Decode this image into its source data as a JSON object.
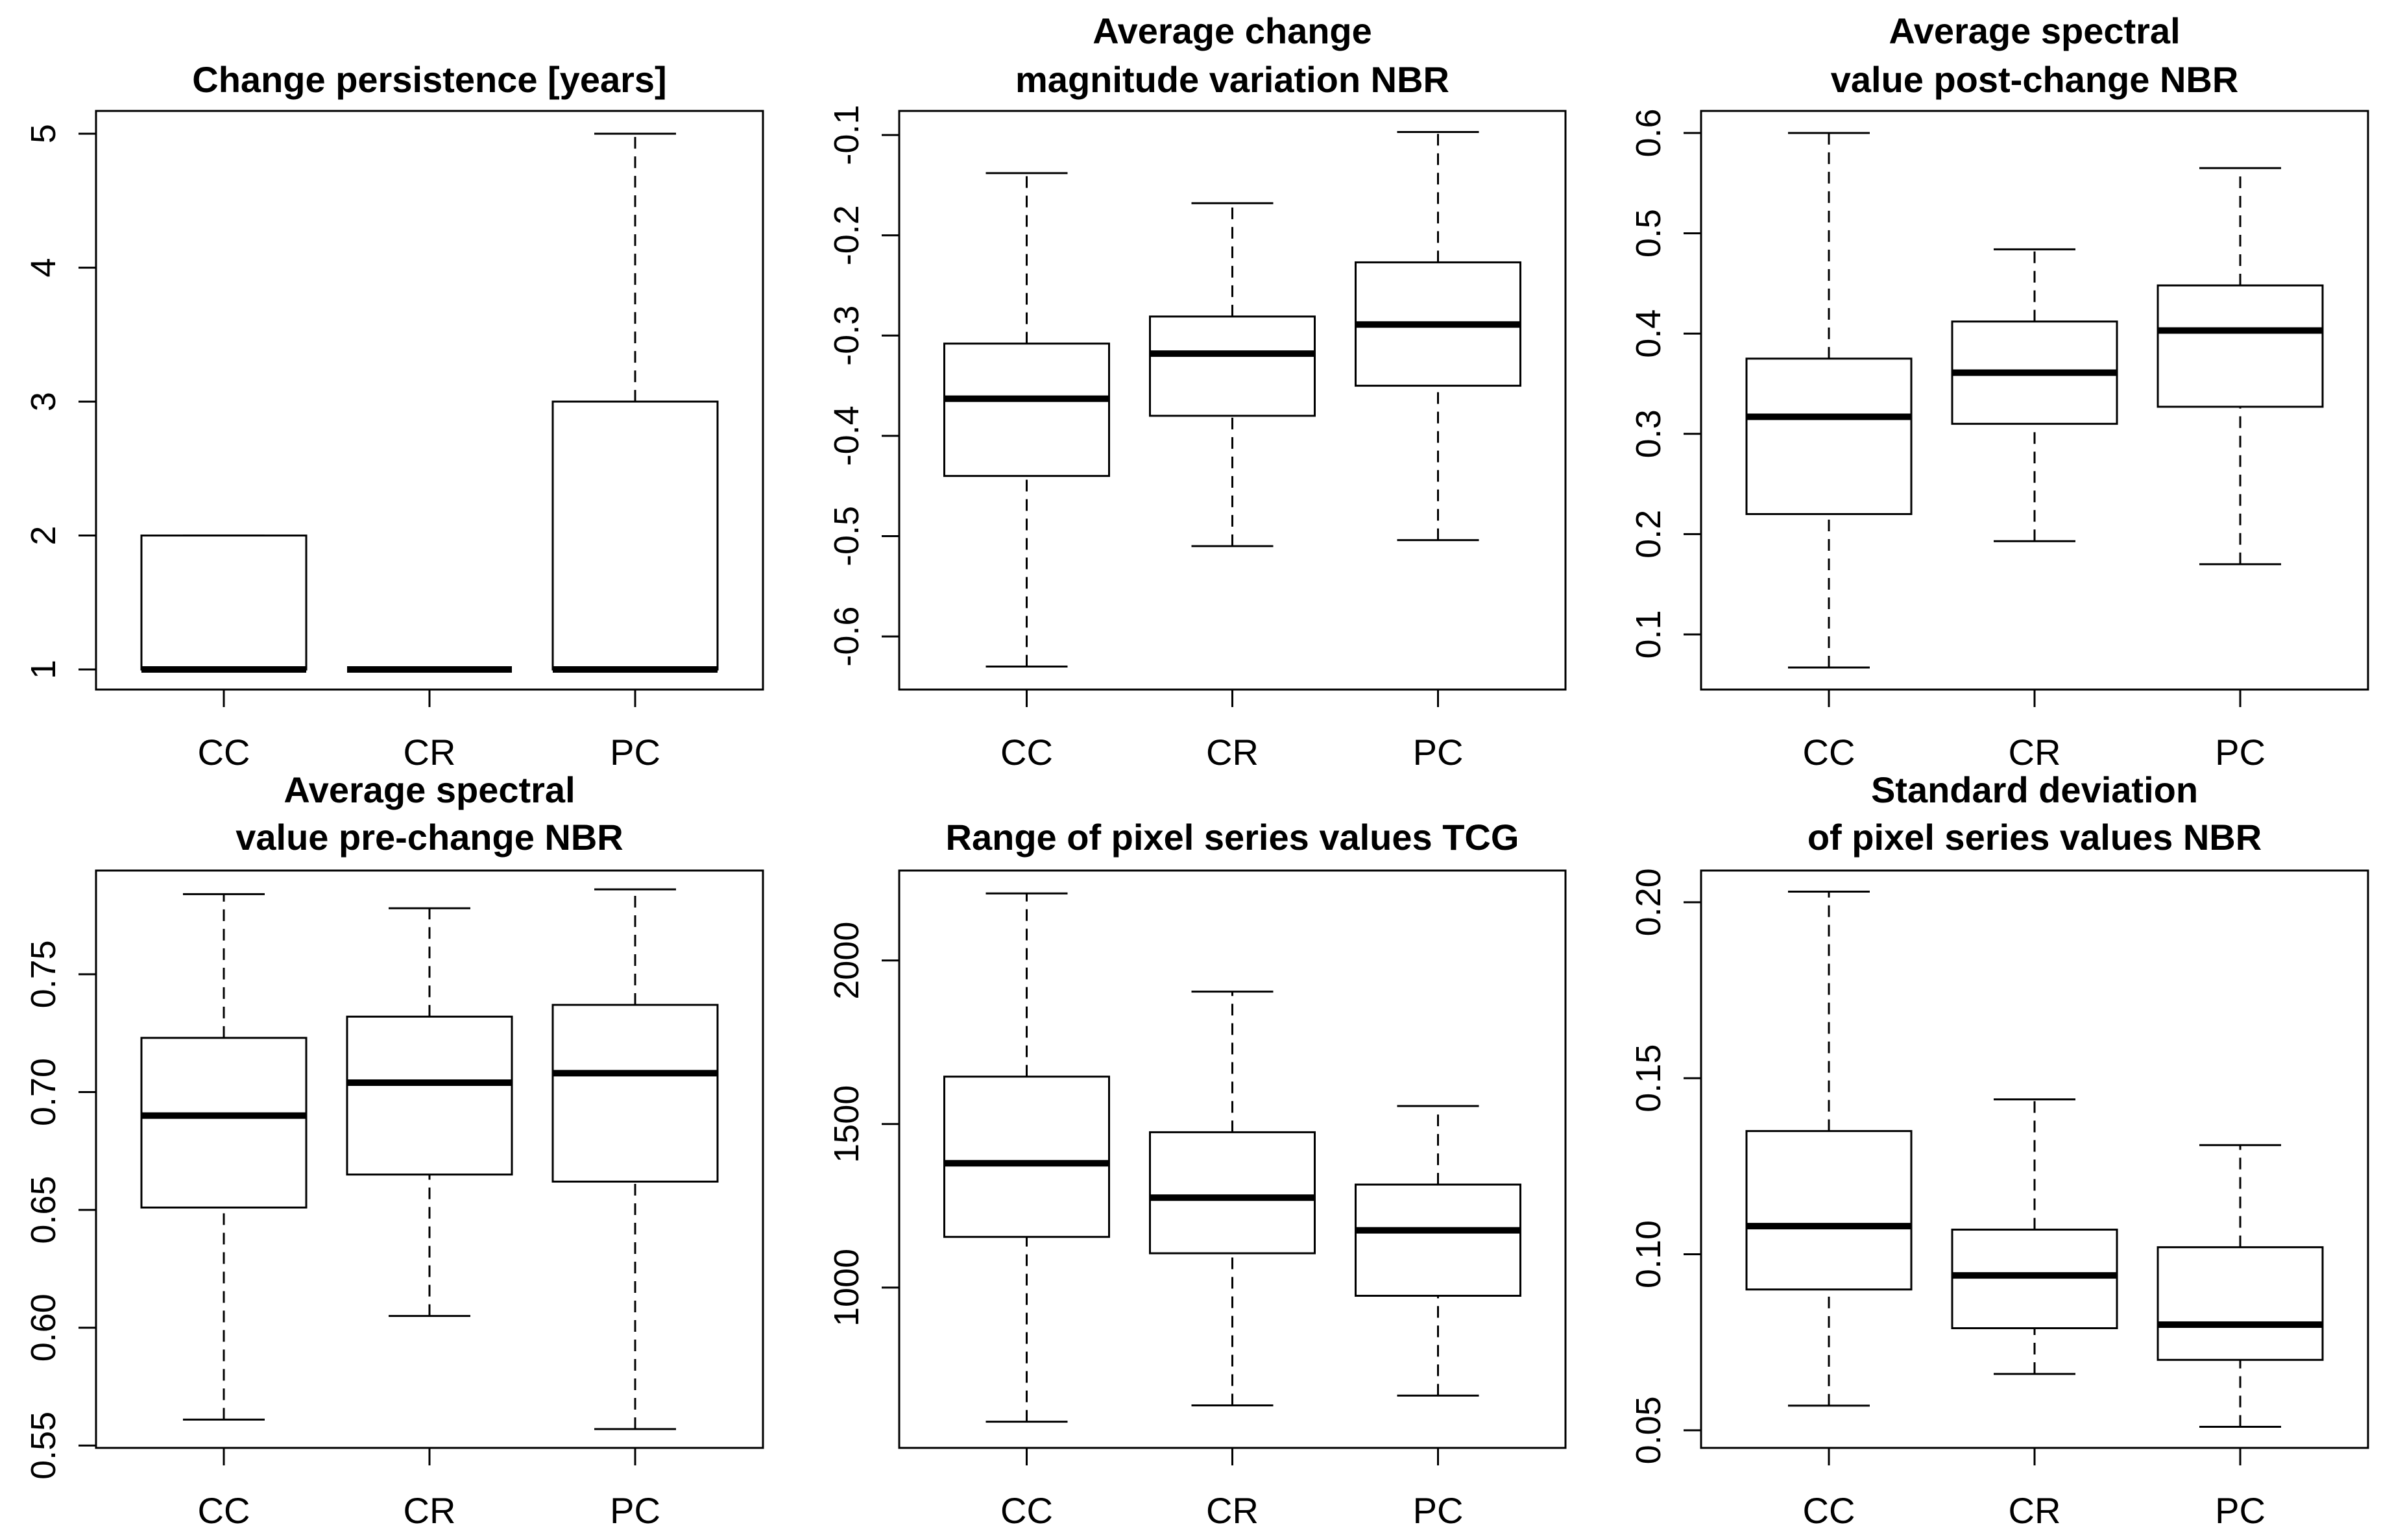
{
  "chart_data": [
    {
      "type": "boxplot",
      "title": [
        "Change persistence [years]"
      ],
      "categories": [
        "CC",
        "CR",
        "PC"
      ],
      "ylim": [
        0.85,
        5.17
      ],
      "yticks": [
        1,
        2,
        3,
        4,
        5
      ],
      "ytick_labels": [
        "1",
        "2",
        "3",
        "4",
        "5"
      ],
      "boxes": [
        {
          "min": 1,
          "q1": 1,
          "median": 1,
          "q3": 2,
          "max": 2
        },
        {
          "min": 1,
          "q1": 1,
          "median": 1,
          "q3": 1,
          "max": 1
        },
        {
          "min": 1,
          "q1": 1,
          "median": 1,
          "q3": 3,
          "max": 5
        }
      ]
    },
    {
      "type": "boxplot",
      "title": [
        "Average change",
        "magnitude variation NBR"
      ],
      "categories": [
        "CC",
        "CR",
        "PC"
      ],
      "ylim": [
        -0.653,
        -0.076
      ],
      "yticks": [
        -0.6,
        -0.5,
        -0.4,
        -0.3,
        -0.2,
        -0.1
      ],
      "ytick_labels": [
        "-0.6",
        "-0.5",
        "-0.4",
        "-0.3",
        "-0.2",
        "-0.1"
      ],
      "boxes": [
        {
          "min": -0.63,
          "q1": -0.44,
          "median": -0.363,
          "q3": -0.308,
          "max": -0.138
        },
        {
          "min": -0.51,
          "q1": -0.38,
          "median": -0.318,
          "q3": -0.281,
          "max": -0.168
        },
        {
          "min": -0.504,
          "q1": -0.35,
          "median": -0.289,
          "q3": -0.227,
          "max": -0.097
        }
      ]
    },
    {
      "type": "boxplot",
      "title": [
        "Average spectral",
        "value post-change  NBR"
      ],
      "categories": [
        "CC",
        "CR",
        "PC"
      ],
      "ylim": [
        0.045,
        0.622
      ],
      "yticks": [
        0.1,
        0.2,
        0.3,
        0.4,
        0.5,
        0.6
      ],
      "ytick_labels": [
        "0.1",
        "0.2",
        "0.3",
        "0.4",
        "0.5",
        "0.6"
      ],
      "boxes": [
        {
          "min": 0.067,
          "q1": 0.22,
          "median": 0.317,
          "q3": 0.375,
          "max": 0.6
        },
        {
          "min": 0.193,
          "q1": 0.31,
          "median": 0.361,
          "q3": 0.412,
          "max": 0.484
        },
        {
          "min": 0.17,
          "q1": 0.327,
          "median": 0.403,
          "q3": 0.448,
          "max": 0.565
        }
      ]
    },
    {
      "type": "boxplot",
      "title": [
        "Average spectral",
        "value pre-change  NBR"
      ],
      "categories": [
        "CC",
        "CR",
        "PC"
      ],
      "ylim": [
        0.549,
        0.794
      ],
      "yticks": [
        0.55,
        0.6,
        0.65,
        0.7,
        0.75
      ],
      "ytick_labels": [
        "0.55",
        "0.60",
        "0.65",
        "0.70",
        "0.75"
      ],
      "boxes": [
        {
          "min": 0.561,
          "q1": 0.651,
          "median": 0.69,
          "q3": 0.723,
          "max": 0.784
        },
        {
          "min": 0.605,
          "q1": 0.665,
          "median": 0.704,
          "q3": 0.732,
          "max": 0.778
        },
        {
          "min": 0.557,
          "q1": 0.662,
          "median": 0.708,
          "q3": 0.737,
          "max": 0.786
        }
      ]
    },
    {
      "type": "boxplot",
      "title": [
        "Range of pixel series values TCG"
      ],
      "categories": [
        "CC",
        "CR",
        "PC"
      ],
      "ylim": [
        510,
        2275
      ],
      "yticks": [
        1000,
        1500,
        2000
      ],
      "ytick_labels": [
        "1000",
        "1500",
        "2000"
      ],
      "boxes": [
        {
          "min": 590,
          "q1": 1155,
          "median": 1380,
          "q3": 1645,
          "max": 2205
        },
        {
          "min": 640,
          "q1": 1105,
          "median": 1275,
          "q3": 1475,
          "max": 1905
        },
        {
          "min": 670,
          "q1": 975,
          "median": 1175,
          "q3": 1315,
          "max": 1555
        }
      ]
    },
    {
      "type": "boxplot",
      "title": [
        "Standard deviation",
        "of pixel series values  NBR"
      ],
      "categories": [
        "CC",
        "CR",
        "PC"
      ],
      "ylim": [
        0.045,
        0.209
      ],
      "yticks": [
        0.05,
        0.1,
        0.15,
        0.2
      ],
      "ytick_labels": [
        "0.05",
        "0.10",
        "0.15",
        "0.20"
      ],
      "boxes": [
        {
          "min": 0.057,
          "q1": 0.09,
          "median": 0.108,
          "q3": 0.135,
          "max": 0.203
        },
        {
          "min": 0.066,
          "q1": 0.079,
          "median": 0.094,
          "q3": 0.107,
          "max": 0.144
        },
        {
          "min": 0.051,
          "q1": 0.07,
          "median": 0.08,
          "q3": 0.102,
          "max": 0.131
        }
      ]
    }
  ]
}
